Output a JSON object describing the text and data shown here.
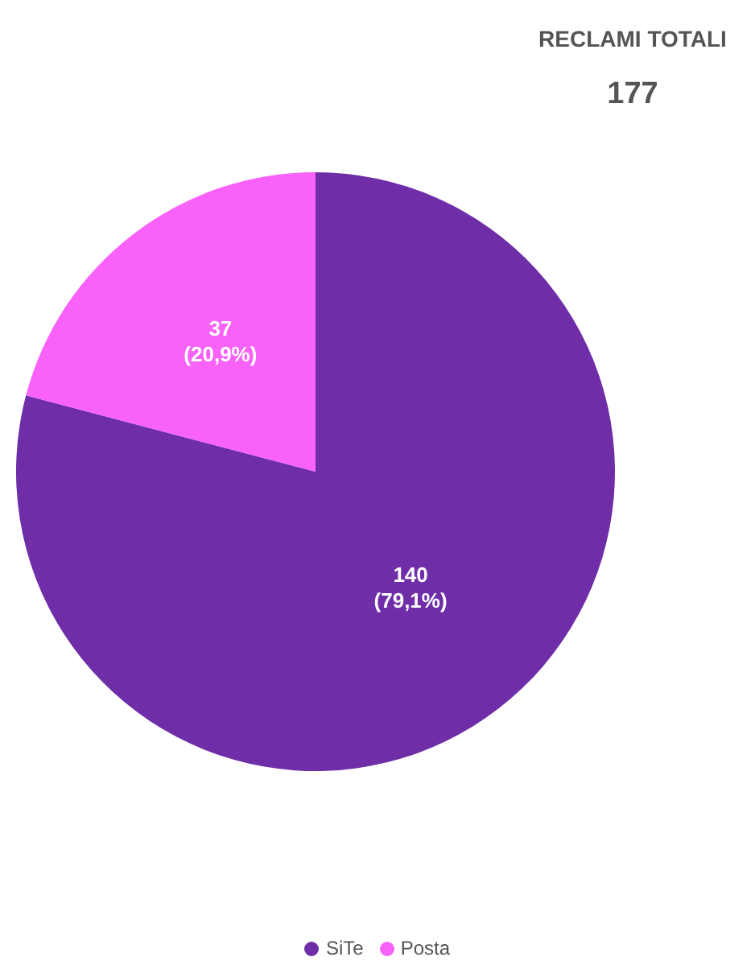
{
  "chart_data": {
    "type": "pie",
    "categories": [
      "SiTe",
      "Posta"
    ],
    "values": [
      140,
      37
    ],
    "colors": [
      "#6f2da8",
      "#f962f9"
    ],
    "value_labels": [
      "140\n(79,1%)",
      "37\n(20,9%)"
    ],
    "annotations": [
      "RECLAMI TOTALI",
      "177"
    ],
    "legend": "bottom"
  }
}
